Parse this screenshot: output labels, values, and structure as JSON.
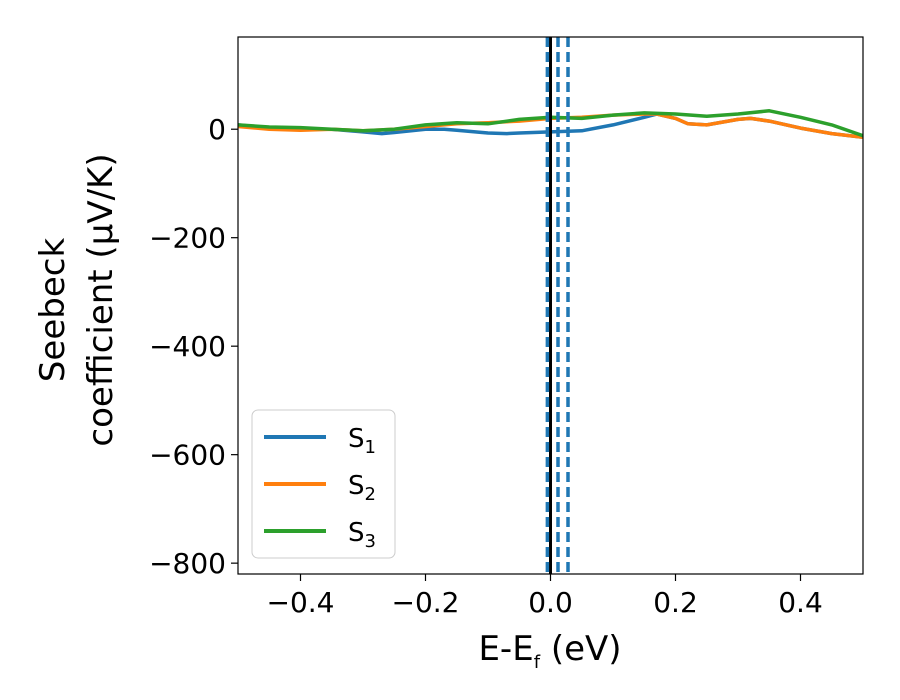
{
  "chart_data": {
    "type": "line",
    "xlabel": "E-E",
    "xlabel_subscript": "f",
    "xlabel_unit": " (eV)",
    "ylabel_line1": "Seebeck",
    "ylabel_line2": "coefficient  (μV/K)",
    "xlim": [
      -0.5,
      0.5
    ],
    "ylim": [
      -820,
      170
    ],
    "xticks": [
      -0.4,
      -0.2,
      0.0,
      0.2,
      0.4
    ],
    "xtick_labels": [
      "−0.4",
      "−0.2",
      "0.0",
      "0.2",
      "0.4"
    ],
    "yticks": [
      -800,
      -600,
      -400,
      -200,
      0
    ],
    "ytick_labels": [
      "−800",
      "−600",
      "−400",
      "−200",
      "0"
    ],
    "grid": false,
    "legend_position": "lower-left",
    "series": [
      {
        "name": "S",
        "subscript": "1",
        "color": "#1f77b4",
        "x": [
          -0.5,
          -0.45,
          -0.4,
          -0.35,
          -0.3,
          -0.27,
          -0.25,
          -0.2,
          -0.17,
          -0.15,
          -0.1,
          -0.07,
          -0.05,
          0.0,
          0.05,
          0.1,
          0.15,
          0.17,
          0.2,
          0.22,
          0.25,
          0.3,
          0.32,
          0.35,
          0.4,
          0.45,
          0.5
        ],
        "y": [
          8,
          2,
          0,
          0,
          -5,
          -8,
          -6,
          0,
          0,
          -2,
          -7,
          -8,
          -7,
          -5,
          -3,
          8,
          22,
          28,
          20,
          10,
          8,
          18,
          20,
          15,
          2,
          -8,
          -15
        ]
      },
      {
        "name": "S",
        "subscript": "2",
        "color": "#ff7f0e",
        "x": [
          -0.5,
          -0.45,
          -0.4,
          -0.35,
          -0.3,
          -0.25,
          -0.2,
          -0.15,
          -0.1,
          -0.05,
          0.0,
          0.05,
          0.1,
          0.15,
          0.17,
          0.2,
          0.22,
          0.25,
          0.3,
          0.32,
          0.35,
          0.4,
          0.45,
          0.5
        ],
        "y": [
          5,
          0,
          -2,
          0,
          -3,
          0,
          5,
          10,
          12,
          15,
          20,
          22,
          26,
          28,
          28,
          20,
          10,
          8,
          18,
          20,
          15,
          2,
          -8,
          -15
        ]
      },
      {
        "name": "S",
        "subscript": "3",
        "color": "#2ca02c",
        "x": [
          -0.5,
          -0.45,
          -0.4,
          -0.35,
          -0.3,
          -0.25,
          -0.2,
          -0.15,
          -0.1,
          -0.05,
          0.0,
          0.05,
          0.1,
          0.15,
          0.2,
          0.25,
          0.3,
          0.35,
          0.4,
          0.45,
          0.5
        ],
        "y": [
          8,
          4,
          3,
          0,
          -3,
          0,
          8,
          12,
          10,
          18,
          22,
          20,
          26,
          30,
          28,
          24,
          28,
          34,
          22,
          8,
          -12
        ]
      }
    ],
    "vertical_lines": [
      {
        "x": 0.0,
        "color": "#000000",
        "style": "solid"
      },
      {
        "x": -0.005,
        "color": "#1f77b4",
        "style": "dashed"
      },
      {
        "x": 0.012,
        "color": "#1f77b4",
        "style": "dashed"
      },
      {
        "x": 0.028,
        "color": "#1f77b4",
        "style": "dashed"
      }
    ]
  }
}
